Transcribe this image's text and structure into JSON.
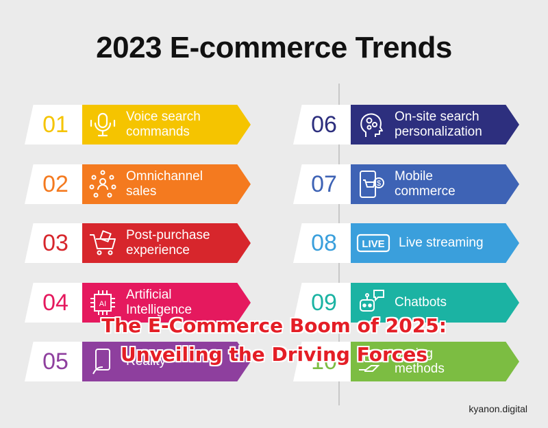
{
  "title": "2023 E-commerce Trends",
  "overlay": {
    "line1": "The E-Commerce Boom of 2025:",
    "line2": "Unveiling the Driving Forces"
  },
  "brand": "kyanon.digital",
  "trends_left": [
    {
      "number": "01",
      "label_line1": "Voice search",
      "label_line2": "commands",
      "color": "#f5c400",
      "icon": "microphone-icon"
    },
    {
      "number": "02",
      "label_line1": "Omnichannel",
      "label_line2": "sales",
      "color": "#f47a1f",
      "icon": "network-people-icon"
    },
    {
      "number": "03",
      "label_line1": "Post-purchase",
      "label_line2": "experience",
      "color": "#d7262c",
      "icon": "shopping-cart-icon"
    },
    {
      "number": "04",
      "label_line1": "Artificial",
      "label_line2": "Intelligence",
      "color": "#e5195e",
      "icon": "ai-chip-icon"
    },
    {
      "number": "05",
      "label_line1": "",
      "label_line2": "Reality",
      "color": "#8e3f9e",
      "icon": "ar-phone-icon"
    }
  ],
  "trends_right": [
    {
      "number": "06",
      "label_line1": "On-site search",
      "label_line2": "personalization",
      "color": "#2d2f7e",
      "icon": "head-gears-icon"
    },
    {
      "number": "07",
      "label_line1": "Mobile",
      "label_line2": "commerce",
      "color": "#3e63b5",
      "icon": "mobile-cart-icon"
    },
    {
      "number": "08",
      "label_line1": "Live streaming",
      "label_line2": "",
      "color": "#3a9fdc",
      "icon": "live-badge-icon"
    },
    {
      "number": "09",
      "label_line1": "Chatbots",
      "label_line2": "",
      "color": "#1bb3a3",
      "icon": "chatbot-icon"
    },
    {
      "number": "10",
      "label_line1": "paying",
      "label_line2": "methods",
      "color": "#7cbd42",
      "icon": "payment-hand-icon"
    }
  ],
  "icon_text": {
    "ai": "AI",
    "live": "LIVE",
    "dollar": "$"
  }
}
